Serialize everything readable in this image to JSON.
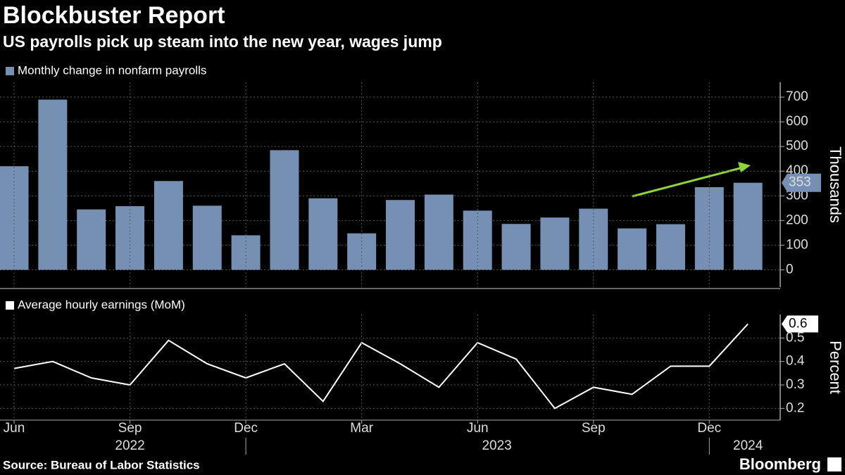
{
  "title": "Blockbuster Report",
  "subtitle": "US payrolls pick up steam into the new year, wages jump",
  "source": "Source: Bureau of Labor Statistics",
  "brand": "Bloomberg",
  "chart_data": [
    {
      "type": "bar",
      "legend": "Monthly change in nonfarm payrolls",
      "y_axis_label": "Thousands",
      "color": "#7690b4",
      "values": [
        420,
        690,
        245,
        258,
        360,
        260,
        140,
        485,
        290,
        148,
        283,
        305,
        240,
        186,
        212,
        248,
        168,
        185,
        335,
        353
      ],
      "ylim": [
        -70,
        760
      ],
      "yticks": [
        0,
        100,
        200,
        300,
        400,
        500,
        600,
        700
      ],
      "grid": true
    },
    {
      "type": "line",
      "legend": "Average hourly earnings (MoM)",
      "y_axis_label": "Percent",
      "color": "#ffffff",
      "categories": [
        "Jun",
        null,
        null,
        "Sep",
        null,
        null,
        "Dec",
        null,
        null,
        "Mar",
        null,
        null,
        "Jun",
        null,
        null,
        "Sep",
        null,
        null,
        "Dec",
        null
      ],
      "years": [
        {
          "label": "2022",
          "from": 0,
          "to": 6
        },
        {
          "label": "2023",
          "from": 7,
          "to": 18
        },
        {
          "label": "2024",
          "from": 19,
          "to": 19
        }
      ],
      "values": [
        0.37,
        0.4,
        0.33,
        0.3,
        0.49,
        0.39,
        0.33,
        0.39,
        0.23,
        0.48,
        0.39,
        0.29,
        0.48,
        0.41,
        0.2,
        0.29,
        0.26,
        0.38,
        0.38,
        0.56
      ],
      "value_labels": [
        null,
        null,
        null,
        null,
        null,
        null,
        null,
        null,
        null,
        null,
        null,
        null,
        null,
        null,
        null,
        null,
        null,
        null,
        null,
        "0.6"
      ],
      "ylim": [
        0.15,
        0.6
      ],
      "yticks": [
        0.2,
        0.3,
        0.4,
        0.5
      ],
      "grid": true
    }
  ]
}
